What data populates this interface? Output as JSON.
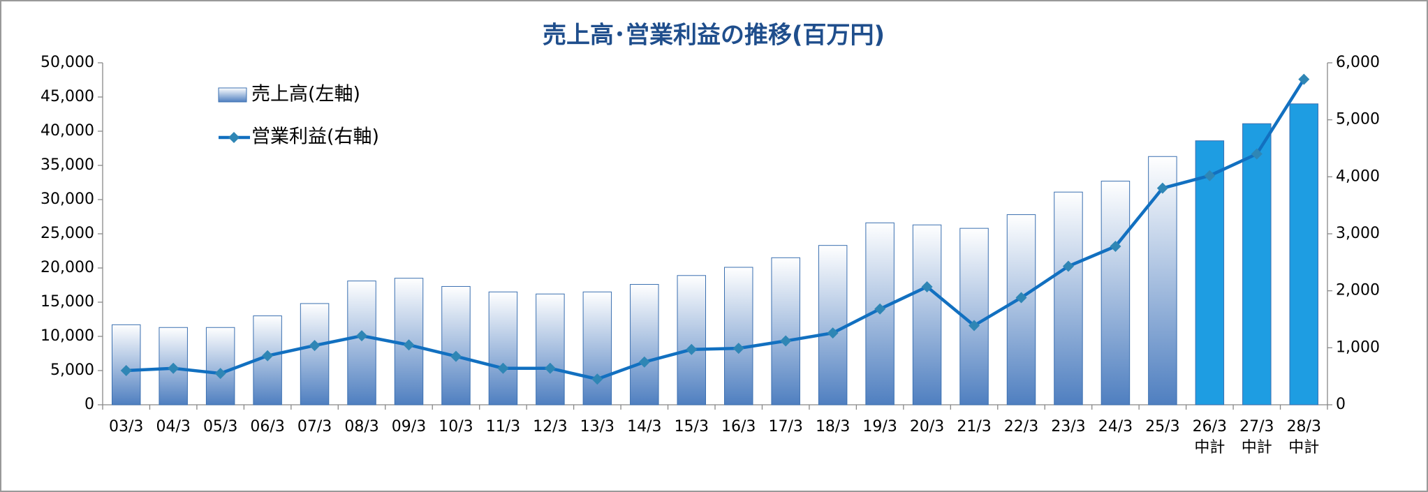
{
  "chart_data": {
    "type": "bar-line",
    "title": "売上高･営業利益の推移(百万円)",
    "categories": [
      "03/3",
      "04/3",
      "05/3",
      "06/3",
      "07/3",
      "08/3",
      "09/3",
      "10/3",
      "11/3",
      "12/3",
      "13/3",
      "14/3",
      "15/3",
      "16/3",
      "17/3",
      "18/3",
      "19/3",
      "20/3",
      "21/3",
      "22/3",
      "23/3",
      "24/3",
      "25/3",
      "26/3\n中計",
      "27/3\n中計",
      "28/3\n中計"
    ],
    "series": [
      {
        "name": "売上高(左軸)",
        "type": "bar",
        "axis": "y",
        "colors": [
          "#4f7fc0",
          "#4f7fc0",
          "#4f7fc0",
          "#4f7fc0",
          "#4f7fc0",
          "#4f7fc0",
          "#4f7fc0",
          "#4f7fc0",
          "#4f7fc0",
          "#4f7fc0",
          "#4f7fc0",
          "#4f7fc0",
          "#4f7fc0",
          "#4f7fc0",
          "#4f7fc0",
          "#4f7fc0",
          "#4f7fc0",
          "#4f7fc0",
          "#4f7fc0",
          "#4f7fc0",
          "#4f7fc0",
          "#4f7fc0",
          "#4f7fc0",
          "#1e9de2",
          "#1e9de2",
          "#1e9de2"
        ],
        "values": [
          11700,
          11300,
          11300,
          13000,
          14800,
          18100,
          18500,
          17300,
          16500,
          16200,
          16500,
          17600,
          18900,
          20100,
          21500,
          23300,
          26600,
          26300,
          25800,
          27800,
          31100,
          32700,
          36300,
          38600,
          41100,
          44000
        ]
      },
      {
        "name": "営業利益(右軸)",
        "type": "line",
        "axis": "y2",
        "color": "#1270c0",
        "marker_color": "#2f86b5",
        "values": [
          600,
          640,
          550,
          860,
          1040,
          1210,
          1050,
          850,
          640,
          640,
          450,
          750,
          970,
          990,
          1120,
          1260,
          1680,
          2070,
          1390,
          1880,
          2430,
          2780,
          3800,
          4020,
          4400,
          5710
        ]
      }
    ],
    "ylim": [
      0,
      50000
    ],
    "yticks": [
      0,
      {
        "value": 5000,
        "label": "5,000"
      },
      {
        "value": 10000,
        "label": "10,000"
      },
      {
        "value": 15000,
        "label": "15,000"
      },
      {
        "value": 20000,
        "label": "20,000"
      },
      {
        "value": 25000,
        "label": "25,000"
      },
      {
        "value": 30000,
        "label": "30,000"
      },
      {
        "value": 35000,
        "label": "35,000"
      },
      {
        "value": 40000,
        "label": "40,000"
      },
      {
        "value": 45000,
        "label": "45,000"
      },
      {
        "value": 50000,
        "label": "50,000"
      }
    ],
    "y2lim": [
      0,
      6000
    ],
    "y2ticks": [
      0,
      {
        "value": 1000,
        "label": "1,000"
      },
      {
        "value": 2000,
        "label": "2,000"
      },
      {
        "value": 3000,
        "label": "3,000"
      },
      {
        "value": 4000,
        "label": "4,000"
      },
      {
        "value": 5000,
        "label": "5,000"
      },
      {
        "value": 6000,
        "label": "6,000"
      }
    ],
    "legend": "upper left"
  }
}
